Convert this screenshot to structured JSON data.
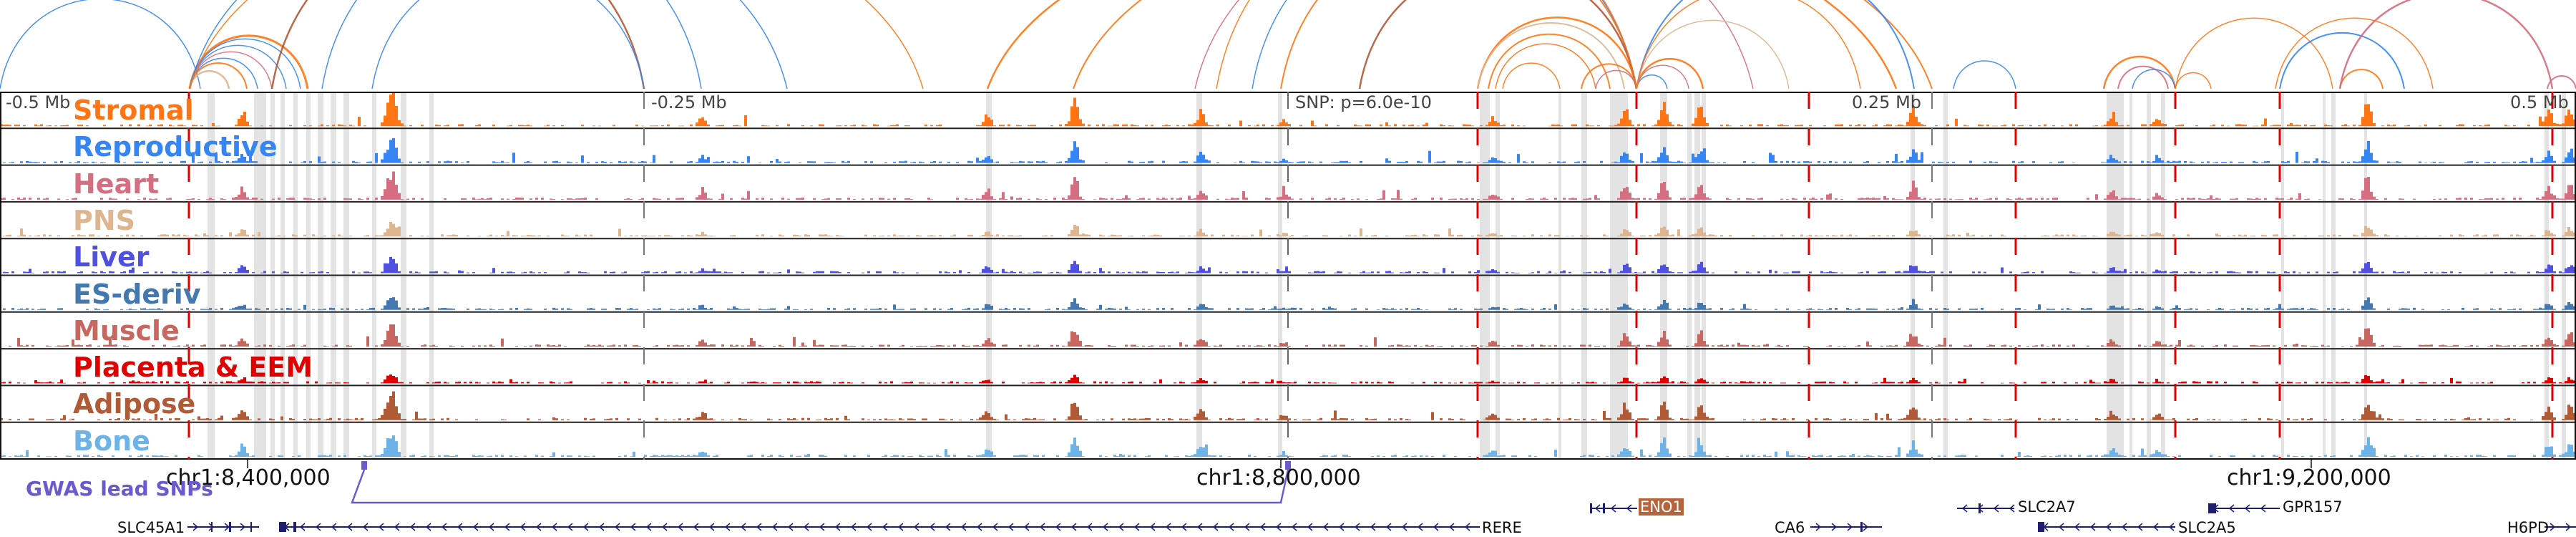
{
  "ruler": {
    "left_label": "-0.5 Mb",
    "left_mid_label": "-0.25 Mb",
    "center_label": "SNP: p=6.0e-10",
    "right_mid_label": "0.25 Mb",
    "right_label": "0.5 Mb"
  },
  "tracks": [
    {
      "name": "Stromal",
      "color": "#ff7514"
    },
    {
      "name": "Reproductive",
      "color": "#3585f2"
    },
    {
      "name": "Heart",
      "color": "#d46e80"
    },
    {
      "name": "PNS",
      "color": "#ddb58f"
    },
    {
      "name": "Liver",
      "color": "#4f4fe0"
    },
    {
      "name": "ES-deriv",
      "color": "#4379b0"
    },
    {
      "name": "Muscle",
      "color": "#c86660"
    },
    {
      "name": "Placenta & EEM",
      "color": "#e00000"
    },
    {
      "name": "Adipose",
      "color": "#b05a36"
    },
    {
      "name": "Bone",
      "color": "#6db3e8"
    }
  ],
  "coordinates": {
    "c1": "chr1:8,400,000",
    "c2": "chr1:8,800,000",
    "c3": "chr1:9,200,000"
  },
  "gwas": {
    "label": "GWAS lead SNPs",
    "color": "#6a5acd"
  },
  "genes": [
    {
      "name": "SLC45A1",
      "strand": "+"
    },
    {
      "name": "RERE",
      "strand": "-"
    },
    {
      "name": "ENO1",
      "strand": "-",
      "highlight": true
    },
    {
      "name": "CA6",
      "strand": "+"
    },
    {
      "name": "SLC2A7",
      "strand": "-"
    },
    {
      "name": "SLC2A5",
      "strand": "-"
    },
    {
      "name": "GPR157",
      "strand": "-"
    },
    {
      "name": "H6PD",
      "strand": "+"
    }
  ],
  "colors": {
    "variant_line": "#e00000",
    "highlight_band": "#e3e3e3",
    "gene": "#1e1e6e"
  }
}
